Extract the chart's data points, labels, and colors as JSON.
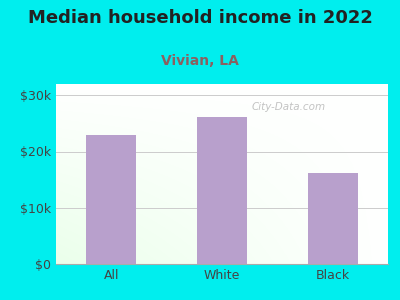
{
  "categories": [
    "All",
    "White",
    "Black"
  ],
  "values": [
    23000,
    26200,
    16200
  ],
  "bar_color": "#b8a0cc",
  "title": "Median household income in 2022",
  "subtitle": "Vivian, LA",
  "subtitle_color": "#8b6060",
  "title_color": "#222222",
  "background_color": "#00EEEE",
  "ylim": [
    0,
    32000
  ],
  "yticks": [
    0,
    10000,
    20000,
    30000
  ],
  "ytick_labels": [
    "$0",
    "$10k",
    "$20k",
    "$30k"
  ],
  "grid_color": "#cccccc",
  "title_fontsize": 13,
  "subtitle_fontsize": 10,
  "tick_fontsize": 9,
  "watermark": "City-Data.com"
}
